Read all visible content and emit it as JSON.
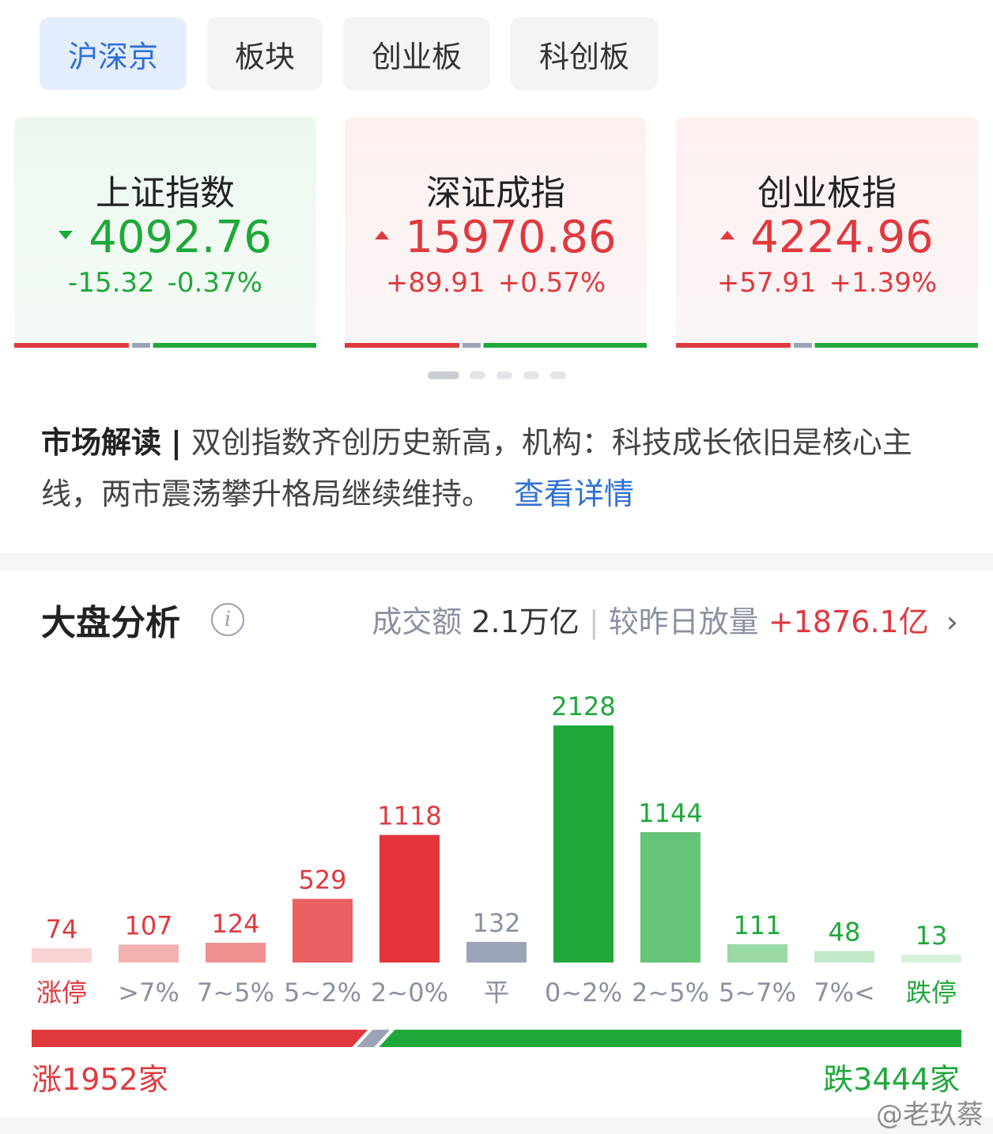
{
  "tabs": {
    "items": [
      "沪深京",
      "板块",
      "创业板",
      "科创板"
    ],
    "active": 0
  },
  "indices": [
    {
      "name": "上证指数",
      "value": "4092.76",
      "change": "-15.32",
      "percent": "-0.37%",
      "direction": "down"
    },
    {
      "name": "深证成指",
      "value": "15970.86",
      "change": "+89.91",
      "percent": "+0.57%",
      "direction": "up"
    },
    {
      "name": "创业板指",
      "value": "4224.96",
      "change": "+57.91",
      "percent": "+1.39%",
      "direction": "up"
    }
  ],
  "commentary": {
    "label": "市场解读",
    "text": "双创指数齐创历史新高，机构：科技成长依旧是核心主线，两市震荡攀升格局继续维持。",
    "link": "查看详情"
  },
  "analysis": {
    "title": "大盘分析",
    "turnover_label": "成交额",
    "turnover": "2.1万亿",
    "compare_label": "较昨日放量",
    "compare_value": "+1876.1亿"
  },
  "chart_data": {
    "type": "bar",
    "categories": [
      "涨停",
      ">7%",
      "7~5%",
      "5~2%",
      "2~0%",
      "平",
      "0~2%",
      "2~5%",
      "5~7%",
      "7%<",
      "跌停"
    ],
    "values": [
      74,
      107,
      124,
      529,
      1118,
      132,
      2128,
      1144,
      111,
      48,
      13
    ],
    "colors": [
      "#f9d4d4",
      "#f3b1b1",
      "#ef9090",
      "#ea6161",
      "#e2343a",
      "#9ba3b6",
      "#1fa83a",
      "#66c479",
      "#99d9a4",
      "#c2e9ca",
      "#d8f1dd"
    ],
    "label_colors": [
      "#e0393e",
      "#e0393e",
      "#e0393e",
      "#e0393e",
      "#e0393e",
      "#8a91a0",
      "#1fa83a",
      "#1fa83a",
      "#1fa83a",
      "#1fa83a",
      "#1fa83a"
    ],
    "category_colors": [
      "#e0393e",
      "#8a91a0",
      "#8a91a0",
      "#8a91a0",
      "#8a91a0",
      "#8a91a0",
      "#8a91a0",
      "#8a91a0",
      "#8a91a0",
      "#8a91a0",
      "#1fa83a"
    ]
  },
  "breadth": {
    "rise_label": "涨",
    "rise_count": 1952,
    "rise_unit": "家",
    "fall_label": "跌",
    "fall_count": 3444,
    "fall_unit": "家"
  },
  "watermark": "@老玖蔡"
}
